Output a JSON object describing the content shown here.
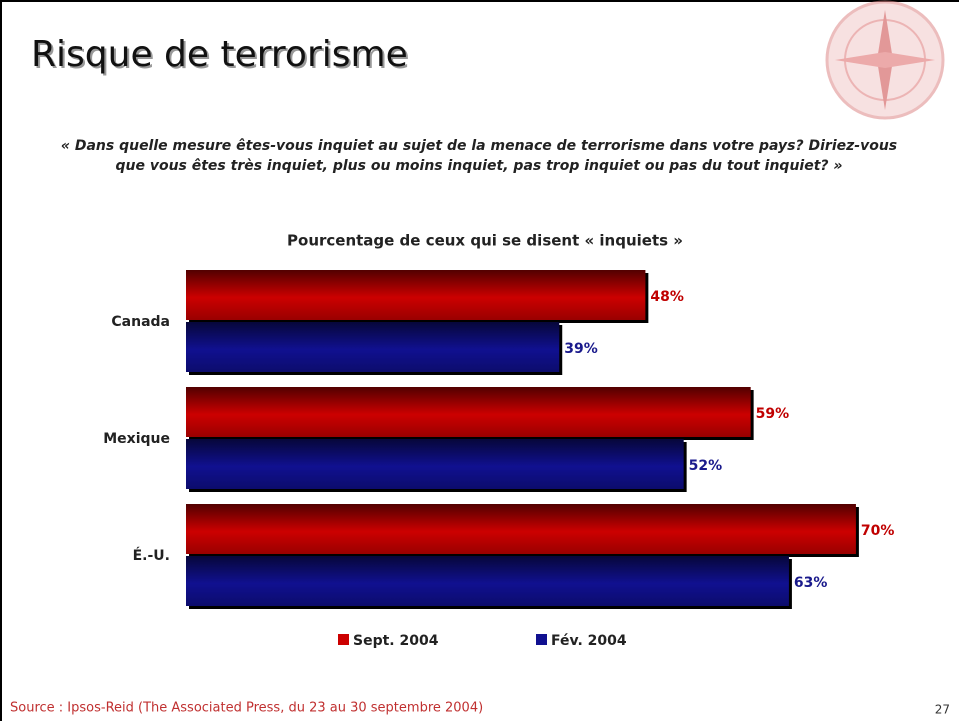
{
  "header": {
    "title": "Risque de terrorisme"
  },
  "question": [
    "« Dans quelle mesure êtes-vous inquiet au sujet de la menace de terrorisme dans votre pays? Diriez-vous",
    "que vous êtes très inquiet, plus ou moins inquiet, pas trop inquiet ou pas du tout inquiet? »"
  ],
  "chart_data": {
    "type": "bar",
    "orientation": "horizontal",
    "title": "Pourcentage de ceux qui se disent « inquiets »",
    "categories": [
      "Canada",
      "Mexique",
      "É.-U."
    ],
    "series": [
      {
        "name": "Sept. 2004",
        "color": "#cc0000",
        "label_color": "#c00000",
        "values": [
          48,
          59,
          70
        ],
        "value_labels": [
          "48%",
          "59%",
          "70%"
        ]
      },
      {
        "name": "Fév. 2004",
        "color": "#101090",
        "label_color": "#1a1a8c",
        "values": [
          39,
          52,
          63
        ],
        "value_labels": [
          "39%",
          "52%",
          "63%"
        ]
      }
    ],
    "legend": "bottom"
  },
  "footer": {
    "source": "Source : Ipsos-Reid (The Associated Press, du 23 au 30 septembre 2004)",
    "page_number": "27"
  }
}
